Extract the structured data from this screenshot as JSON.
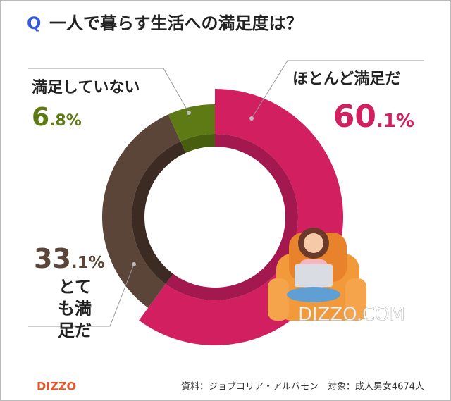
{
  "chart_data": {
    "type": "donut",
    "title_prefix": "Q",
    "title": "一人で暮らす生活への満足度は？",
    "categories": [
      "ほとんど満足だ",
      "とても満足だ",
      "満足していない"
    ],
    "values": [
      60.1,
      33.1,
      6.8
    ],
    "value_labels": [
      "60.1%",
      "33.1%",
      "6.8%"
    ],
    "colors": [
      "#d21f5f",
      "#5b4539",
      "#5e7a14"
    ],
    "inner_colors": [
      "#a3184e",
      "#3b2b22",
      "#485e0f"
    ]
  },
  "watermark": "DIZZO.COM",
  "logo": "DIZZO",
  "source": "資料：ジョブコリア・アルバモン　対象：成人男女4674人"
}
